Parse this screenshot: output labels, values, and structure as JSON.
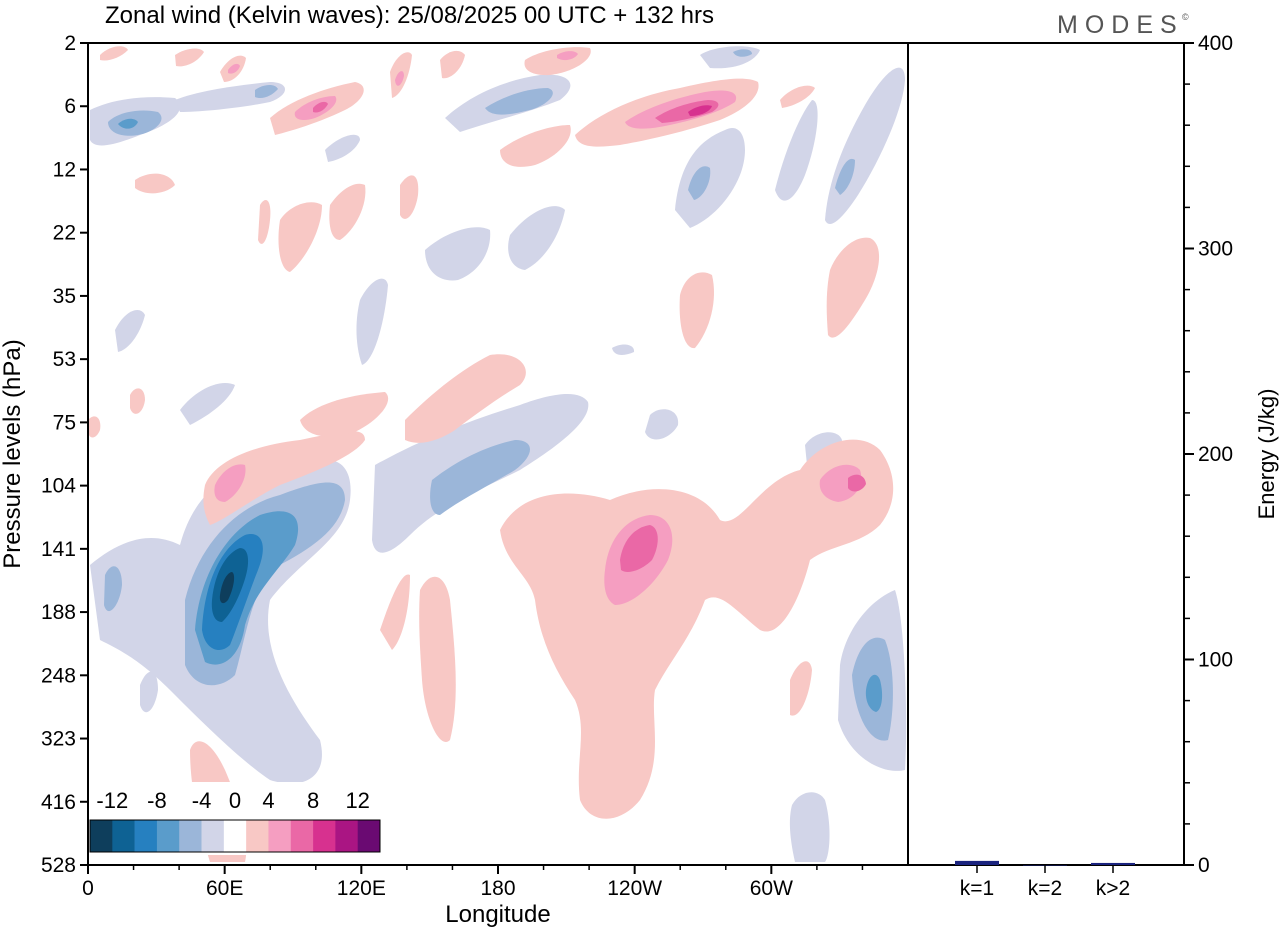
{
  "chart_data": [
    {
      "type": "heatmap",
      "title": "Zonal wind (Kelvin waves):  25/08/2025  00 UTC  + 132 hrs",
      "brand": "MODES",
      "brand_mark": "©",
      "xlabel": "Longitude",
      "ylabel": "Pressure levels (hPa)",
      "x_ticks": [
        {
          "lon": 0,
          "label": "0"
        },
        {
          "lon": 60,
          "label": "60E"
        },
        {
          "lon": 120,
          "label": "120E"
        },
        {
          "lon": 180,
          "label": "180"
        },
        {
          "lon": 240,
          "label": "120W"
        },
        {
          "lon": 300,
          "label": "60W"
        }
      ],
      "xlim": [
        0,
        360
      ],
      "y_ticks": [
        "2",
        "6",
        "12",
        "22",
        "35",
        "53",
        "75",
        "104",
        "141",
        "188",
        "248",
        "323",
        "416",
        "528"
      ],
      "colorbar": {
        "labels": [
          "-12",
          "-8",
          "-4",
          "0",
          "4",
          "8",
          "12"
        ],
        "bounds": [
          -14,
          -12,
          -10,
          -8,
          -6,
          -4,
          -2,
          2,
          4,
          6,
          8,
          10,
          12,
          14
        ],
        "colors": [
          "#0e3e5c",
          "#0e6294",
          "#2680c0",
          "#5a9ccb",
          "#9bb6d9",
          "#d2d5e8",
          "#ffffff",
          "#f8c8c5",
          "#f59ec1",
          "#ea68a6",
          "#d7318f",
          "#aa1583",
          "#6a0a72"
        ]
      },
      "anomalies": [
        {
          "lon": 60,
          "level": 160,
          "value": -12
        },
        {
          "lon": 72,
          "level": 135,
          "value": -8
        },
        {
          "lon": 170,
          "level": 95,
          "value": -6
        },
        {
          "lon": 345,
          "level": 255,
          "value": -8
        },
        {
          "lon": 95,
          "level": 7,
          "value": 6
        },
        {
          "lon": 270,
          "level": 6,
          "value": 10
        },
        {
          "lon": 240,
          "level": 140,
          "value": 8
        },
        {
          "lon": 340,
          "level": 105,
          "value": 6
        },
        {
          "lon": 60,
          "level": 106,
          "value": 6
        },
        {
          "lon": 8,
          "level": 7,
          "value": -6
        }
      ]
    },
    {
      "type": "bar",
      "ylabel": "Energy (J/kg)",
      "categories": [
        "k=1",
        "k=2",
        "k>2"
      ],
      "values": [
        2,
        0,
        1
      ],
      "ylim": [
        0,
        400
      ],
      "y_ticks": [
        "0",
        "100",
        "200",
        "300",
        "400"
      ],
      "bar_color": "#1a237e"
    }
  ]
}
